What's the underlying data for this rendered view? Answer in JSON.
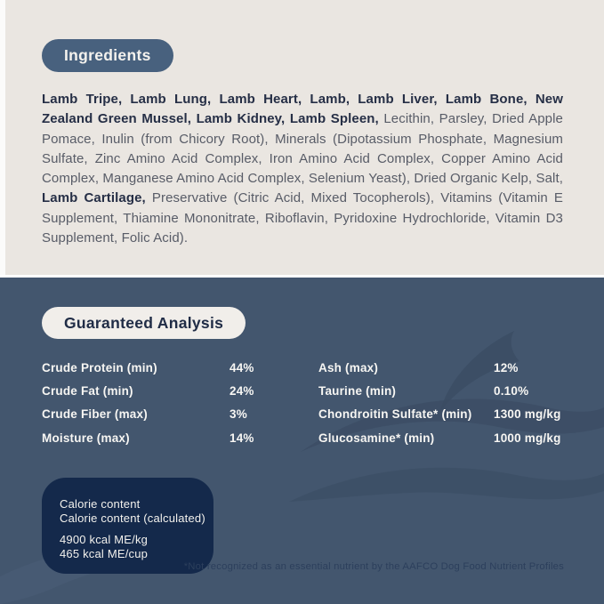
{
  "colors": {
    "cream_background": "#eae6e1",
    "blue_background": "#43566e",
    "ingredients_pill": "#48617e",
    "analysis_pill": "#f1eeea",
    "calorie_box": "#14294b",
    "bold_text": "#262f46",
    "regular_text": "#585c67",
    "white_text": "#f7f6f3",
    "footnote_text": "#2c3f5c",
    "wave_dark": "#3a4c63",
    "wave_light": "#4d607a"
  },
  "ingredients": {
    "title": "Ingredients",
    "segments": [
      {
        "bold": true,
        "text": "Lamb Tripe, Lamb Lung, Lamb Heart, Lamb, Lamb Liver, Lamb Bone, New Zealand Green Mussel, Lamb Kidney, Lamb Spleen,"
      },
      {
        "bold": false,
        "text": "Lecithin, Parsley, Dried Apple Pomace, Inulin (from Chicory Root), Minerals (Dipotassium Phosphate, Magnesium Sulfate, Zinc Amino Acid Complex, Iron Amino Acid Complex, Copper Amino Acid Complex, Manganese Amino Acid Complex, Selenium Yeast), Dried Organic Kelp, Salt,"
      },
      {
        "bold": true,
        "text": "Lamb Cartilage,"
      },
      {
        "bold": false,
        "text": "Preservative (Citric Acid, Mixed Tocopherols), Vitamins (Vitamin E Supplement, Thiamine Mononitrate, Riboflavin, Pyridoxine Hydrochloride, Vitamin D3 Supplement, Folic Acid)."
      }
    ]
  },
  "analysis": {
    "title": "Guaranteed Analysis",
    "left_rows": [
      {
        "label": "Crude Protein (min)",
        "value": "44%"
      },
      {
        "label": "Crude Fat (min)",
        "value": "24%"
      },
      {
        "label": "Crude Fiber (max)",
        "value": "3%"
      },
      {
        "label": "Moisture (max)",
        "value": "14%"
      }
    ],
    "right_rows": [
      {
        "label": "Ash (max)",
        "value": "12%"
      },
      {
        "label": "Taurine (min)",
        "value": "0.10%"
      },
      {
        "label": "Chondroitin Sulfate* (min)",
        "value": "1300 mg/kg"
      },
      {
        "label": "Glucosamine* (min)",
        "value": "1000 mg/kg"
      }
    ],
    "footnote": "*Not recognized as an essential nutrient by the AAFCO Dog Food Nutrient Profiles"
  },
  "calorie": {
    "title_lines": [
      "Calorie content",
      "Calorie content (calculated)"
    ],
    "value_lines": [
      "4900 kcal ME/kg",
      "465 kcal ME/cup"
    ]
  },
  "decor": {
    "wave_icon": "wave-swoosh"
  }
}
